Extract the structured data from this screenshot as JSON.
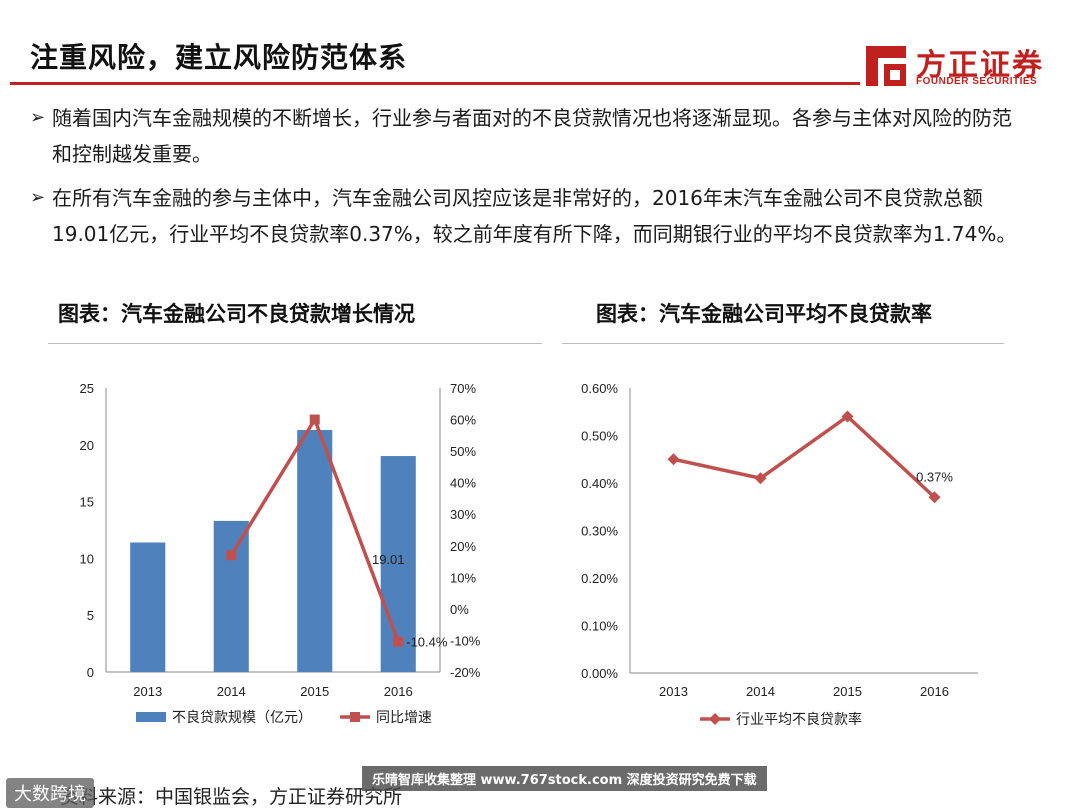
{
  "title": "注重风险，建立风险防范体系",
  "logo": {
    "cn": "方正证券",
    "en": "FOUNDER SECURITIES"
  },
  "bullets": [
    "随着国内汽车金融规模的不断增长，行业参与者面对的不良贷款情况也将逐渐显现。各参与主体对风险的防范和控制越发重要。",
    "在所有汽车金融的参与主体中，汽车金融公司风控应该是非常好的，2016年末汽车金融公司不良贷款总额19.01亿元，行业平均不良贷款率0.37%，较之前年度有所下降，而同期银行业的平均不良贷款率为1.74%。"
  ],
  "chart_left_title": "图表：汽车金融公司不良贷款增长情况",
  "chart_right_title": "图表：汽车金融公司平均不良贷款率",
  "chart_data": [
    {
      "type": "bar",
      "categories": [
        "2013",
        "2014",
        "2015",
        "2016"
      ],
      "series": [
        {
          "name": "不良贷款规模（亿元）",
          "kind": "bar",
          "axis": "left",
          "values": [
            11.4,
            13.3,
            21.3,
            19.01
          ],
          "color": "#4f81bd"
        },
        {
          "name": "同比增速",
          "kind": "line",
          "axis": "right",
          "values": [
            null,
            17,
            60,
            -10.4
          ],
          "color": "#c0504d"
        }
      ],
      "left_axis": {
        "min": 0,
        "max": 25,
        "ticks": [
          "0",
          "5",
          "10",
          "15",
          "20",
          "25"
        ]
      },
      "right_axis": {
        "min": -20,
        "max": 70,
        "ticks": [
          "-20%",
          "-10%",
          "0%",
          "10%",
          "20%",
          "30%",
          "40%",
          "50%",
          "60%",
          "70%"
        ]
      },
      "labels": {
        "bar_2016": "19.01",
        "line_2016": "-10.4%"
      },
      "legend": "bottom"
    },
    {
      "type": "line",
      "categories": [
        "2013",
        "2014",
        "2015",
        "2016"
      ],
      "series": [
        {
          "name": "行业平均不良贷款率",
          "values": [
            0.45,
            0.41,
            0.54,
            0.37
          ],
          "color": "#c0504d"
        }
      ],
      "y_axis": {
        "min": 0,
        "max": 0.6,
        "ticks": [
          "0.00%",
          "0.10%",
          "0.20%",
          "0.30%",
          "0.40%",
          "0.50%",
          "0.60%"
        ]
      },
      "labels": {
        "point_2016": "0.37%"
      },
      "legend": "bottom"
    }
  ],
  "source": "资料来源：中国银监会，方正证券研究所",
  "watermark_left": "大数跨境",
  "watermark_right": "乐晴智库收集整理 www.767stock.com 深度投资研究免费下载"
}
